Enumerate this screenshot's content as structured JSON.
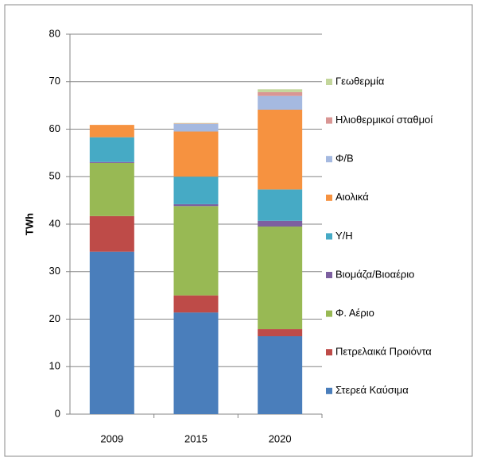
{
  "chart_data": {
    "type": "stacked_bar",
    "y_label": "TWh",
    "categories": [
      "2009",
      "2015",
      "2020"
    ],
    "series": [
      {
        "name": "Στερεά Καύσιμα",
        "color": "#4a7ebb",
        "values": [
          34.2,
          21.4,
          16.4
        ]
      },
      {
        "name": "Πετρελαικά Προιόντα",
        "color": "#be4b48",
        "values": [
          7.5,
          3.6,
          1.5
        ]
      },
      {
        "name": "Φ. Αέριο",
        "color": "#98b954",
        "values": [
          11.2,
          18.8,
          21.6
        ]
      },
      {
        "name": "Βιομάζα/Βιοαέριο",
        "color": "#7d60a0",
        "values": [
          0.2,
          0.4,
          1.2
        ]
      },
      {
        "name": "Υ/Η",
        "color": "#46aac5",
        "values": [
          5.2,
          5.8,
          6.6
        ]
      },
      {
        "name": "Αιολικά",
        "color": "#f69240",
        "values": [
          2.6,
          9.5,
          16.8
        ]
      },
      {
        "name": "Φ/Β",
        "color": "#a5b9e0",
        "values": [
          0,
          1.6,
          2.9
        ]
      },
      {
        "name": "Ηλιοθερμικοί σταθμοί",
        "color": "#d99694",
        "values": [
          0,
          0.1,
          0.8
        ]
      },
      {
        "name": "Γεωθερμία",
        "color": "#c3d69b",
        "values": [
          0,
          0.1,
          0.6
        ]
      }
    ],
    "ylim": [
      0,
      80
    ],
    "yticks": [
      0,
      10,
      20,
      30,
      40,
      50,
      60,
      70,
      80
    ],
    "grid": true,
    "legend": "right"
  }
}
